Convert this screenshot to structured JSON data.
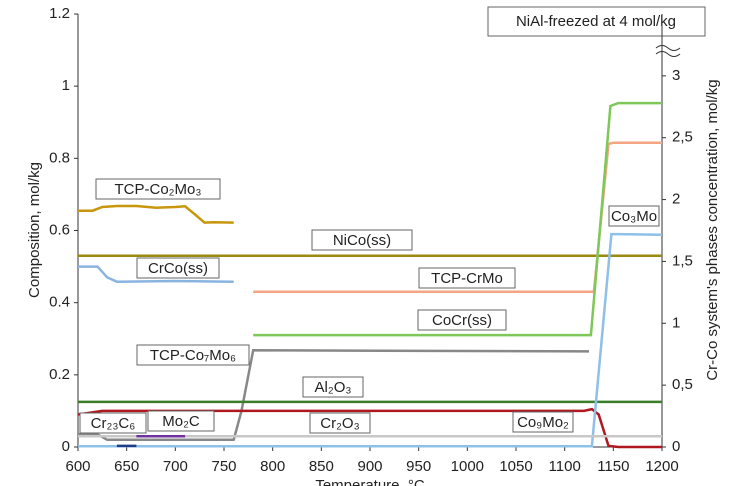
{
  "chart_data": {
    "type": "line",
    "annotation": "NiAl-freezed at 4 mol/kg",
    "x_label": "Temperature, °C",
    "y_label": "Composition, mol/kg",
    "y2_label": "Cr-Co system's phases concentration, mol/kg",
    "xlim": [
      600,
      1200
    ],
    "xticks": [
      600,
      650,
      700,
      750,
      800,
      850,
      900,
      950,
      1000,
      1050,
      1100,
      1150,
      1200
    ],
    "ylim": [
      0,
      1.2
    ],
    "yticks": [
      0,
      0.2,
      0.4,
      0.6,
      0.8,
      1,
      1.2
    ],
    "y2lim": [
      0,
      3.5
    ],
    "y2ticks": [
      0,
      {
        "value": 0.5,
        "label": "0,5"
      },
      1,
      {
        "value": 1.5,
        "label": "1,5"
      },
      2,
      {
        "value": 2.5,
        "label": "2,5"
      },
      3
    ],
    "series": [
      {
        "name": "TCP-Co₂Mo₃",
        "color": "#c8960a",
        "x": [
          600,
          615,
          625,
          640,
          660,
          680,
          700,
          710,
          720,
          730,
          740,
          760
        ],
        "values": [
          0.655,
          0.655,
          0.665,
          0.668,
          0.668,
          0.663,
          0.665,
          0.667,
          0.645,
          0.622,
          0.623,
          0.622
        ]
      },
      {
        "name": "NiCo(ss)",
        "color": "#9a8a10",
        "x": [
          600,
          1200
        ],
        "values": [
          0.53,
          0.53
        ]
      },
      {
        "name": "CrCo(ss)",
        "color": "#8ab4e0",
        "x": [
          600,
          620,
          630,
          640,
          700,
          760
        ],
        "values": [
          0.5,
          0.5,
          0.47,
          0.458,
          0.46,
          0.458
        ]
      },
      {
        "name": "TCP-CrMo",
        "color": "#f4a582",
        "x": [
          780,
          1130,
          1145,
          1150,
          1200
        ],
        "values": [
          0.43,
          0.43,
          0.84,
          0.843,
          0.843
        ]
      },
      {
        "name": "CoCr(ss)",
        "color": "#7ec85a",
        "x": [
          780,
          1127,
          1147,
          1155,
          1200
        ],
        "values": [
          0.31,
          0.31,
          0.945,
          0.953,
          0.953
        ]
      },
      {
        "name": "TCP-Co₇Mo₆",
        "color": "#888888",
        "x": [
          600,
          620,
          630,
          760,
          768,
          780,
          1125
        ],
        "values": [
          0.035,
          0.035,
          0.02,
          0.02,
          0.1,
          0.268,
          0.265
        ]
      },
      {
        "name": "Al₂O₃",
        "color": "#3a7d2a",
        "x": [
          600,
          1200
        ],
        "values": [
          0.125,
          0.125
        ]
      },
      {
        "name": "Cr₂₃C₆",
        "color": "#b01820",
        "x": [
          600,
          625,
          1120,
          1128,
          1135,
          1145,
          1155,
          1200
        ],
        "values": [
          0.09,
          0.1,
          0.1,
          0.105,
          0.09,
          0.003,
          0,
          0
        ]
      },
      {
        "name": "Mo₂C",
        "color": "#8ec0e8",
        "x": [
          600,
          1128,
          1148,
          1155,
          1200
        ],
        "values": [
          0.002,
          0.002,
          0.59,
          0.59,
          0.588
        ]
      },
      {
        "name": "Cr₂O₃",
        "color": "#c8c8c8",
        "x": [
          600,
          1200
        ],
        "values": [
          0.03,
          0.03
        ]
      },
      {
        "name": "Co₉Mo₂",
        "color": "#1f3c88",
        "x": [
          640,
          660
        ],
        "values": [
          0.003,
          0.003
        ]
      },
      {
        "name": "Co₃Mo",
        "color": "#7030a0",
        "x": [
          660,
          710
        ],
        "values": [
          0.03,
          0.03
        ]
      }
    ]
  }
}
